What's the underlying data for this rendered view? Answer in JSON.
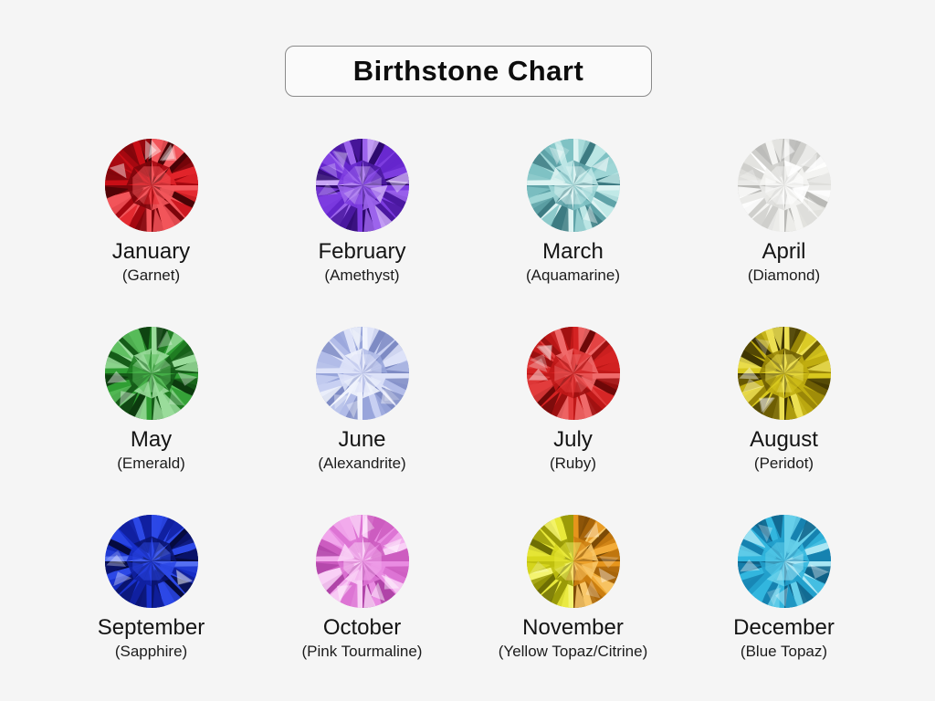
{
  "title": {
    "text": "Birthstone Chart"
  },
  "colors": {
    "page_background": "#f5f5f5",
    "title_box_background": "#fafafa",
    "title_box_border": "#8a8a8a",
    "text": "#141414"
  },
  "stones": [
    {
      "month": "January",
      "stone_label": "(Garnet)",
      "palette": [
        "#4a0306",
        "#7c050b",
        "#a50810",
        "#c80e16",
        "#e2242a",
        "#f2555a"
      ]
    },
    {
      "month": "February",
      "stone_label": "(Amethyst)",
      "palette": [
        "#2e0a6e",
        "#4a18a0",
        "#6526cc",
        "#7d3ce0",
        "#9c64ec",
        "#c9a6f6"
      ]
    },
    {
      "month": "March",
      "stone_label": "(Aquamarine)",
      "palette": [
        "#3d7b82",
        "#5fa3a8",
        "#7fc2c4",
        "#9fd6d6",
        "#bce6e5",
        "#ddf3f2"
      ]
    },
    {
      "month": "April",
      "stone_label": "(Diamond)",
      "palette": [
        "#b9b9b6",
        "#cfcfcc",
        "#dededb",
        "#eaeae8",
        "#f4f4f2",
        "#ffffff"
      ]
    },
    {
      "month": "May",
      "stone_label": "(Emerald)",
      "palette": [
        "#0c3a0e",
        "#155c18",
        "#1f7d22",
        "#2f9e33",
        "#57bb59",
        "#9adc9b"
      ]
    },
    {
      "month": "June",
      "stone_label": "(Alexandrite)",
      "palette": [
        "#7e8bc4",
        "#98a5da",
        "#b2bce8",
        "#c8d0f2",
        "#dde2f8",
        "#f0f3fc"
      ]
    },
    {
      "month": "July",
      "stone_label": "(Ruby)",
      "palette": [
        "#6e0808",
        "#9c1010",
        "#c01818",
        "#d42222",
        "#e23c3c",
        "#ef6a6a"
      ]
    },
    {
      "month": "August",
      "stone_label": "(Peridot)",
      "palette": [
        "#3f3502",
        "#6e5e04",
        "#9a8708",
        "#c0ad10",
        "#d8c81e",
        "#ecdf52"
      ]
    },
    {
      "month": "September",
      "stone_label": "(Sapphire)",
      "palette": [
        "#050a3e",
        "#0a1470",
        "#1020a0",
        "#1830cc",
        "#2c48e6",
        "#5570f2"
      ]
    },
    {
      "month": "October",
      "stone_label": "(Pink Tourmaline)",
      "palette": [
        "#b044a8",
        "#cc5cc0",
        "#dd74d4",
        "#e98ce2",
        "#f2aaec",
        "#f9d0f6"
      ]
    },
    {
      "month": "November",
      "stone_label": "(Yellow Topaz/Citrine)",
      "palette": [
        "#6e6e04",
        "#9a9a08",
        "#c0c010",
        "#d8d81e",
        "#e8e83a",
        "#f4f470"
      ],
      "palette_right": [
        "#7c4a06",
        "#a8650a",
        "#cc7e10",
        "#e6951c",
        "#f2ab38",
        "#f8c668"
      ]
    },
    {
      "month": "December",
      "stone_label": "(Blue Topaz)",
      "palette": [
        "#0f6288",
        "#1682b0",
        "#22a0cc",
        "#32b6de",
        "#66cfea",
        "#a9e6f4"
      ]
    }
  ]
}
